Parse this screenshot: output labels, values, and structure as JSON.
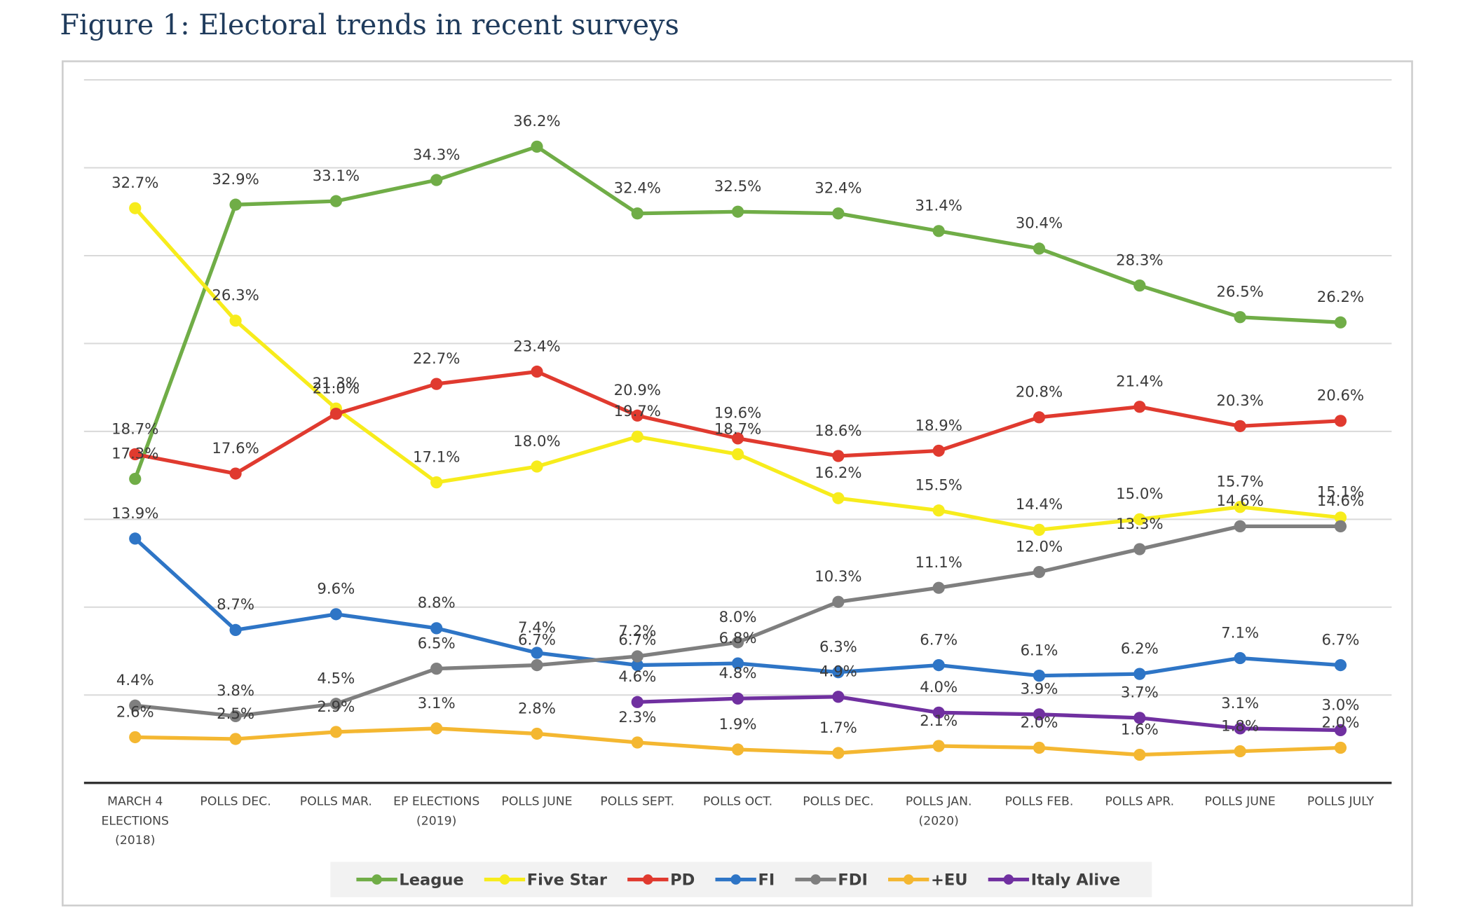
{
  "chart_data": {
    "type": "line",
    "title": "Figure 1: Electoral trends in recent surveys",
    "categories": [
      "MARCH 4\nELECTIONS\n(2018)",
      "POLLS DEC.",
      "POLLS MAR.",
      "EP ELECTIONS\n(2019)",
      "POLLS JUNE",
      "POLLS SEPT.",
      "POLLS OCT.",
      "POLLS DEC.",
      "POLLS JAN.\n(2020)",
      "POLLS FEB.",
      "POLLS APR.",
      "POLLS JUNE",
      "POLLS JULY"
    ],
    "ylim": [
      0,
      40
    ],
    "yticks": [
      0,
      5,
      10,
      15,
      20,
      25,
      30,
      35,
      40
    ],
    "grid": true,
    "series": [
      {
        "name": "League",
        "color": "#70ad47",
        "values": [
          17.3,
          32.9,
          33.1,
          34.3,
          36.2,
          32.4,
          32.5,
          32.4,
          31.4,
          30.4,
          28.3,
          26.5,
          26.2
        ],
        "value_labels": [
          "17.3%",
          "32.9%",
          "33.1%",
          "34.3%",
          "36.2%",
          "32.4%",
          "32.5%",
          "32.4%",
          "31.4%",
          "30.4%",
          "28.3%",
          "26.5%",
          "26.2%"
        ]
      },
      {
        "name": "Five Star",
        "color": "#f7ec1c",
        "values": [
          32.7,
          26.3,
          21.3,
          17.1,
          18.0,
          19.7,
          18.7,
          16.2,
          15.5,
          14.4,
          15.0,
          15.7,
          15.1
        ],
        "value_labels": [
          "32.7%",
          "26.3%",
          "21.3%",
          "17.1%",
          "18.0%",
          "19.7%",
          "18.7%",
          "16.2%",
          "15.5%",
          "14.4%",
          "15.0%",
          "15.7%",
          "15.1%"
        ]
      },
      {
        "name": "PD",
        "color": "#e03a2f",
        "values": [
          18.7,
          17.6,
          21.0,
          22.7,
          23.4,
          20.9,
          19.6,
          18.6,
          18.9,
          20.8,
          21.4,
          20.3,
          20.6
        ],
        "value_labels": [
          "18.7%",
          "17.6%",
          "21.0%",
          "22.7%",
          "23.4%",
          "20.9%",
          "19.6%",
          "18.6%",
          "18.9%",
          "20.8%",
          "21.4%",
          "20.3%",
          "20.6%"
        ]
      },
      {
        "name": "FI",
        "color": "#2e75c6",
        "values": [
          13.9,
          8.7,
          9.6,
          8.8,
          7.4,
          6.7,
          6.8,
          6.3,
          6.7,
          6.1,
          6.2,
          7.1,
          6.7
        ],
        "value_labels": [
          "13.9%",
          "8.7%",
          "9.6%",
          "8.8%",
          "7.4%",
          "6.7%",
          "6.8%",
          "6.3%",
          "6.7%",
          "6.1%",
          "6.2%",
          "7.1%",
          "6.7%"
        ]
      },
      {
        "name": "FDI",
        "color": "#7f7f7f",
        "values": [
          4.4,
          3.8,
          4.5,
          6.5,
          6.7,
          7.2,
          8.0,
          10.3,
          11.1,
          12.0,
          13.3,
          14.6,
          14.6
        ],
        "value_labels": [
          "4.4%",
          "3.8%",
          "4.5%",
          "6.5%",
          "6.7%",
          "7.2%",
          "8.0%",
          "10.3%",
          "11.1%",
          "12.0%",
          "13.3%",
          "14.6%",
          "14.6%"
        ]
      },
      {
        "name": "+EU",
        "color": "#f4b731",
        "values": [
          2.6,
          2.5,
          2.9,
          3.1,
          2.8,
          2.3,
          1.9,
          1.7,
          2.1,
          2.0,
          1.6,
          1.8,
          2.0
        ],
        "value_labels": [
          "2.6%",
          "2.5%",
          "2.9%",
          "3.1%",
          "2.8%",
          "2.3%",
          "1.9%",
          "1.7%",
          "2.1%",
          "2.0%",
          "1.6%",
          "1.8%",
          "2.0%"
        ]
      },
      {
        "name": "Italy Alive",
        "color": "#7030a0",
        "values": [
          null,
          null,
          null,
          null,
          null,
          4.6,
          4.8,
          4.9,
          4.0,
          3.9,
          3.7,
          3.1,
          3.0
        ],
        "value_labels": [
          null,
          null,
          null,
          null,
          null,
          "4.6%",
          "4.8%",
          "4.9%",
          "4.0%",
          "3.9%",
          "3.7%",
          "3.1%",
          "3.0%"
        ]
      }
    ]
  }
}
